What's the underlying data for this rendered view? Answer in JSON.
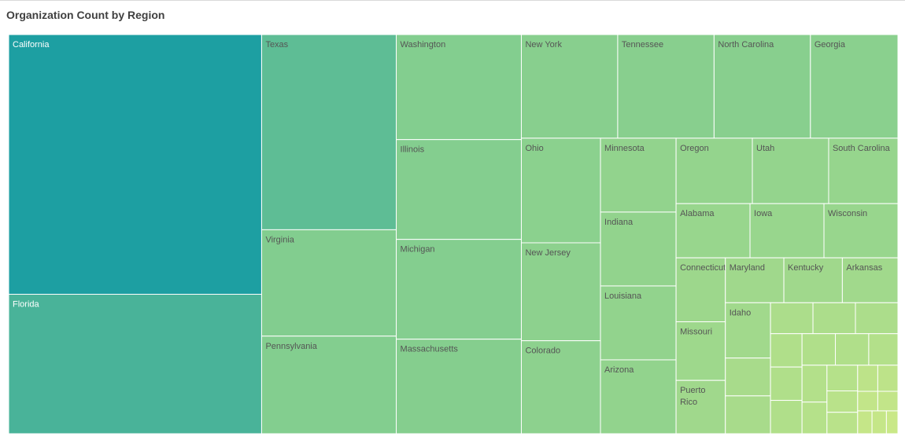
{
  "title": "Organization Count by Region",
  "chart_data": {
    "type": "treemap",
    "title": "Organization Count by Region",
    "colors": {
      "high": "#1d9fa2",
      "low": "#c9e888",
      "border": "#ffffff"
    },
    "values": [
      {
        "label": "California",
        "value": 1000
      },
      {
        "label": "Florida",
        "value": 537
      },
      {
        "label": "Texas",
        "value": 400
      },
      {
        "label": "Virginia",
        "value": 218
      },
      {
        "label": "Massachusetts",
        "value": 180
      },
      {
        "label": "Pennsylvania",
        "value": 200
      },
      {
        "label": "Washington",
        "value": 200
      },
      {
        "label": "Illinois",
        "value": 190
      },
      {
        "label": "Michigan",
        "value": 190
      },
      {
        "label": "New York",
        "value": 152
      },
      {
        "label": "Tennessee",
        "value": 152
      },
      {
        "label": "North Carolina",
        "value": 152
      },
      {
        "label": "Georgia",
        "value": 138
      },
      {
        "label": "Ohio",
        "value": 126
      },
      {
        "label": "New Jersey",
        "value": 118
      },
      {
        "label": "Colorado",
        "value": 112
      },
      {
        "label": "Minnesota",
        "value": 85
      },
      {
        "label": "Indiana",
        "value": 85
      },
      {
        "label": "Louisiana",
        "value": 85
      },
      {
        "label": "Arizona",
        "value": 85
      },
      {
        "label": "Oregon",
        "value": 76
      },
      {
        "label": "Utah",
        "value": 76
      },
      {
        "label": "South Carolina",
        "value": 69
      },
      {
        "label": "Alabama",
        "value": 61
      },
      {
        "label": "Iowa",
        "value": 61
      },
      {
        "label": "Wisconsin",
        "value": 61
      },
      {
        "label": "Connecticut",
        "value": 48
      },
      {
        "label": "Missouri",
        "value": 44
      },
      {
        "label": "Puerto\nRico",
        "value": 40
      },
      {
        "label": "Maryland",
        "value": 40
      },
      {
        "label": "Kentucky",
        "value": 40
      },
      {
        "label": "Arkansas",
        "value": 38
      },
      {
        "label": "Idaho",
        "value": 38
      },
      {
        "label": "",
        "value": 26
      },
      {
        "label": "",
        "value": 26
      },
      {
        "label": "",
        "value": 20
      },
      {
        "label": "",
        "value": 20
      },
      {
        "label": "",
        "value": 20
      },
      {
        "label": "",
        "value": 16
      },
      {
        "label": "",
        "value": 16
      },
      {
        "label": "",
        "value": 16
      },
      {
        "label": "",
        "value": 16
      },
      {
        "label": "",
        "value": 16
      },
      {
        "label": "",
        "value": 14
      },
      {
        "label": "",
        "value": 14
      },
      {
        "label": "",
        "value": 12
      },
      {
        "label": "",
        "value": 12
      },
      {
        "label": "",
        "value": 10
      },
      {
        "label": "",
        "value": 10
      },
      {
        "label": "",
        "value": 8
      },
      {
        "label": "",
        "value": 8
      },
      {
        "label": "",
        "value": 6
      },
      {
        "label": "",
        "value": 6
      },
      {
        "label": "",
        "value": 5
      },
      {
        "label": "",
        "value": 5
      },
      {
        "label": "",
        "value": 4
      }
    ]
  }
}
